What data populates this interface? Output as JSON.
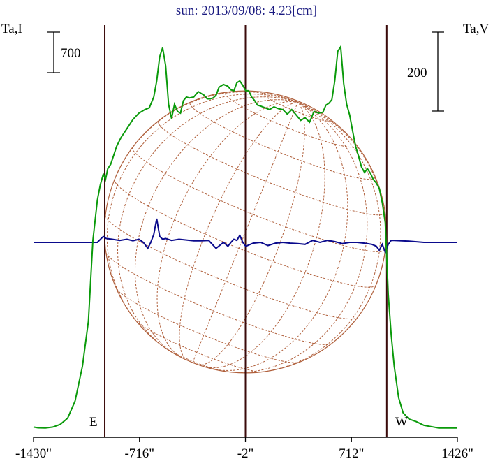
{
  "chart_data": {
    "type": "line",
    "title": "sun: 2013/09/08: 4.23[cm]",
    "y_left_label": "Ta,I",
    "y_right_label": "Ta,V",
    "left_scale_bar": "700",
    "right_scale_bar": "200",
    "x_ticks": [
      "-1430\"",
      "-716\"",
      "-2\"",
      "712\"",
      "1426\""
    ],
    "x_tick_values": [
      -1430,
      -716,
      -2,
      712,
      1426
    ],
    "xlim": [
      -1430,
      1426
    ],
    "east_label": "E",
    "west_label": "W",
    "limb_markers_arcsec": [
      -950,
      -2,
      950
    ],
    "disk_radius_arcsec": 950,
    "grid": "heliographic",
    "colors": {
      "stokes_I": "#0a9a0a",
      "stokes_V": "#0a0a8c",
      "disk": "#b0603c",
      "markers": "#3a0a0a",
      "title": "#1a1a80"
    },
    "series": [
      {
        "name": "I",
        "color": "#0a9a0a",
        "x": [
          -1430,
          -1400,
          -1350,
          -1300,
          -1250,
          -1200,
          -1150,
          -1100,
          -1060,
          -1030,
          -1000,
          -980,
          -960,
          -945,
          -930,
          -910,
          -890,
          -870,
          -840,
          -800,
          -760,
          -720,
          -680,
          -650,
          -620,
          -600,
          -580,
          -560,
          -540,
          -520,
          -500,
          -480,
          -460,
          -440,
          -420,
          -400,
          -380,
          -350,
          -320,
          -300,
          -280,
          -260,
          -240,
          -220,
          -200,
          -180,
          -150,
          -120,
          -100,
          -80,
          -60,
          -40,
          -20,
          0,
          20,
          40,
          60,
          80,
          100,
          130,
          160,
          190,
          220,
          250,
          280,
          310,
          340,
          370,
          400,
          430,
          460,
          490,
          520,
          540,
          560,
          580,
          600,
          620,
          640,
          660,
          680,
          700,
          720,
          740,
          760,
          780,
          800,
          820,
          840,
          860,
          880,
          900,
          920,
          940,
          960,
          980,
          1000,
          1030,
          1060,
          1100,
          1150,
          1200,
          1250,
          1300,
          1350,
          1400,
          1426
        ],
        "y": [
          20,
          12,
          10,
          20,
          50,
          120,
          310,
          700,
          1200,
          2100,
          2550,
          2720,
          2840,
          2780,
          2900,
          2950,
          3050,
          3150,
          3250,
          3350,
          3450,
          3520,
          3560,
          3580,
          3700,
          3880,
          4150,
          4250,
          4050,
          3620,
          3460,
          3620,
          3540,
          3520,
          3660,
          3700,
          3690,
          3700,
          3760,
          3740,
          3720,
          3680,
          3680,
          3690,
          3720,
          3810,
          3840,
          3820,
          3780,
          3770,
          3860,
          3880,
          3830,
          3770,
          3770,
          3700,
          3660,
          3610,
          3600,
          3580,
          3560,
          3590,
          3570,
          3560,
          3510,
          3560,
          3500,
          3440,
          3470,
          3420,
          3540,
          3520,
          3530,
          3610,
          3630,
          3670,
          3880,
          4210,
          4260,
          3850,
          3620,
          3500,
          3320,
          3150,
          3040,
          2920,
          2860,
          2900,
          2850,
          2780,
          2740,
          2680,
          2520,
          2300,
          1500,
          1050,
          700,
          350,
          180,
          110,
          80,
          40,
          25,
          10,
          10,
          10,
          10
        ]
      },
      {
        "name": "V",
        "color": "#0a0a8c",
        "x": [
          -1430,
          -1300,
          -1200,
          -1100,
          -1000,
          -960,
          -940,
          -900,
          -850,
          -800,
          -760,
          -720,
          -690,
          -660,
          -640,
          -620,
          -600,
          -580,
          -560,
          -540,
          -500,
          -450,
          -400,
          -350,
          -300,
          -250,
          -200,
          -150,
          -120,
          -100,
          -80,
          -60,
          -40,
          -20,
          0,
          50,
          100,
          150,
          200,
          250,
          300,
          350,
          400,
          450,
          500,
          550,
          600,
          650,
          700,
          750,
          800,
          850,
          880,
          900,
          920,
          940,
          960,
          980,
          1000,
          1100,
          1200,
          1300,
          1426
        ],
        "y": [
          0,
          0,
          0,
          0,
          0,
          15,
          10,
          8,
          5,
          8,
          4,
          8,
          0,
          -15,
          0,
          20,
          60,
          15,
          8,
          10,
          5,
          8,
          6,
          4,
          4,
          5,
          -15,
          0,
          -10,
          0,
          8,
          5,
          18,
          0,
          -10,
          -2,
          0,
          -8,
          -2,
          0,
          -2,
          -3,
          -5,
          5,
          0,
          5,
          2,
          -3,
          0,
          0,
          -2,
          -5,
          -10,
          -20,
          -5,
          -25,
          -5,
          5,
          5,
          3,
          0,
          0,
          0
        ]
      }
    ]
  }
}
